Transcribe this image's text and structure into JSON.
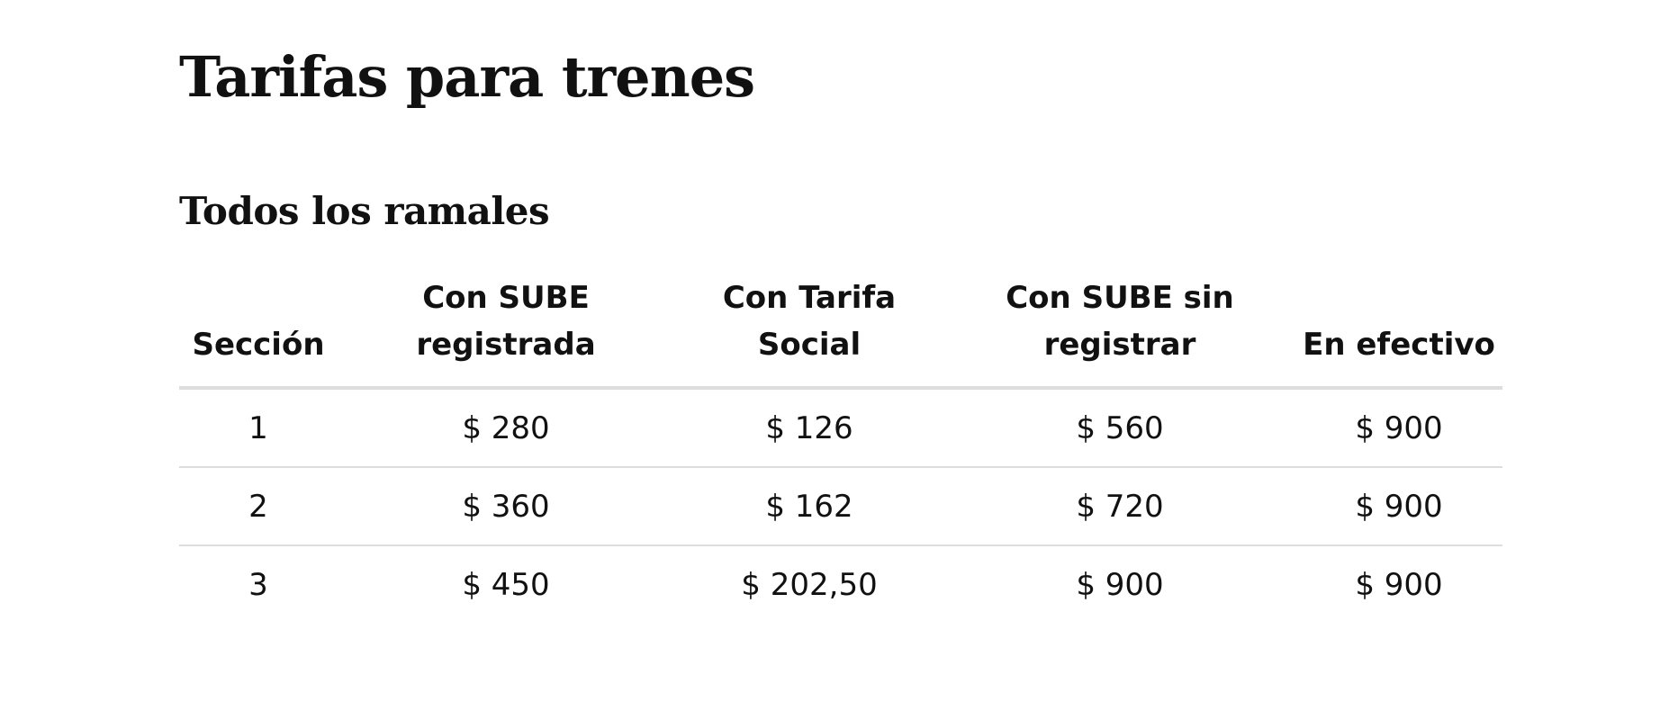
{
  "page": {
    "title": "Tarifas para trenes",
    "section_title": "Todos los ramales"
  },
  "table": {
    "headers": [
      "Sección",
      "Con SUBE registrada",
      "Con Tarifa Social",
      "Con SUBE sin registrar",
      "En efectivo"
    ],
    "rows": [
      [
        "1",
        "$ 280",
        "$ 126",
        "$ 560",
        "$ 900"
      ],
      [
        "2",
        "$ 360",
        "$ 162",
        "$ 720",
        "$ 900"
      ],
      [
        "3",
        "$ 450",
        "$ 202,50",
        "$ 900",
        "$ 900"
      ]
    ]
  }
}
